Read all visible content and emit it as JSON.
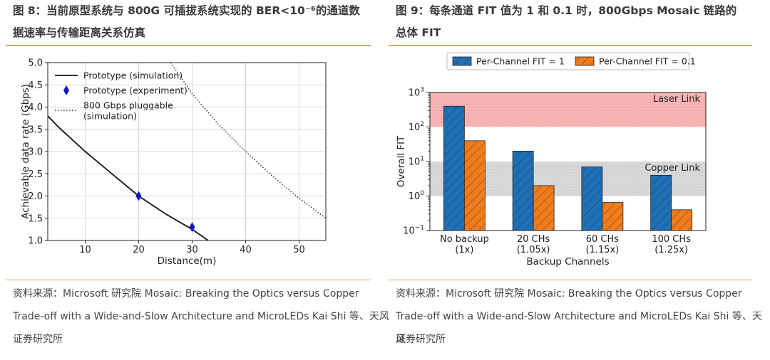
{
  "left": {
    "title_line1": "图 8：当前原型系统与 800G 可插拔系统实现的 BER<10⁻⁶的通道数",
    "title_line2": "据速率与传输距离关系仿真",
    "source_line1": "资料来源：Microsoft  研究院 Mosaic: Breaking the Optics versus Copper",
    "source_line2": "Trade-off with a Wide-and-Slow Architecture and MicroLEDs Kai Shi 等、天风",
    "source_line3": "证券研究所"
  },
  "right": {
    "title_line1": "图 9：每条通道  FIT  值为  1 和  0.1  时，800Gbps Mosaic  链路的",
    "title_line2": "总体  FIT",
    "source_line1": "资料来源：Microsoft  研究院 Mosaic: Breaking the Optics versus Copper",
    "source_line2": "Trade-off with a Wide-and-Slow Architecture and MicroLEDs Kai Shi 等、天风",
    "source_line3": "证券研究所"
  },
  "chart_data": [
    {
      "type": "line",
      "xlabel": "Distance(m)",
      "ylabel": "Achievable data rate (Gbps)",
      "xlim": [
        3,
        55
      ],
      "ylim": [
        1.0,
        5.0
      ],
      "xticks": [
        10,
        20,
        30,
        40,
        50
      ],
      "yticks": [
        "1.0",
        "1.5",
        "2.0",
        "2.5",
        "3.0",
        "3.5",
        "4.0",
        "4.5",
        "5.0"
      ],
      "grid": true,
      "legend_position": "upper-left",
      "series": [
        {
          "name": "Prototype (simulation)",
          "style": "solid",
          "x": [
            3,
            5,
            10,
            15,
            20,
            25,
            30,
            33
          ],
          "y": [
            3.8,
            3.55,
            3.0,
            2.5,
            2.0,
            1.6,
            1.25,
            1.0
          ]
        },
        {
          "name": "Prototype (experiment)",
          "style": "marker",
          "x": [
            20,
            30
          ],
          "y": [
            2.0,
            1.3
          ]
        },
        {
          "name": "800 Gbps pluggable\n(simulation)",
          "style": "dotted",
          "x": [
            26,
            30,
            35,
            40,
            45,
            50,
            55
          ],
          "y": [
            5.0,
            4.3,
            3.6,
            3.0,
            2.45,
            1.95,
            1.5
          ]
        }
      ]
    },
    {
      "type": "bar",
      "xlabel": "Backup Channels",
      "ylabel": "Overall FIT",
      "yscale": "log",
      "ylim": [
        0.1,
        1000
      ],
      "categories": [
        "No backup\n(1x)",
        "20 CHs\n(1.05x)",
        "60 CHs\n(1.15x)",
        "100 CHs\n(1.25x)"
      ],
      "legend_position": "top",
      "series": [
        {
          "name": "Per-Channel FIT = 1",
          "color": "#1f6fb4",
          "values": [
            400,
            20,
            7,
            4
          ]
        },
        {
          "name": "Per-Channel FIT = 0.1",
          "color": "#f07c1e",
          "values": [
            40,
            2,
            0.65,
            0.4
          ]
        }
      ],
      "bands": [
        {
          "label": "Laser Link",
          "from": 100,
          "to": 1000,
          "color": "#f4a6a6"
        },
        {
          "label": "Copper Link",
          "from": 1,
          "to": 10,
          "color": "#cfcfcf"
        }
      ]
    }
  ]
}
